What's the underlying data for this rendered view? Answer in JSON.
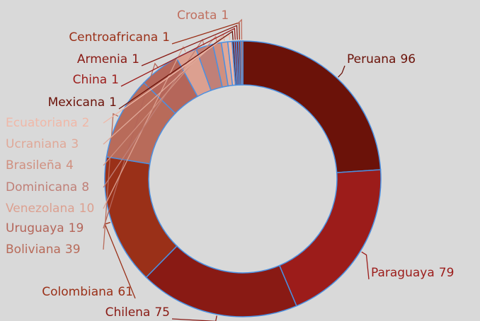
{
  "chart_data": {
    "type": "donut",
    "categories": [
      "Peruana",
      "Paraguaya",
      "Chilena",
      "Colombiana",
      "Boliviana",
      "Uruguaya",
      "Venezolana",
      "Dominicana",
      "Brasileña",
      "Ucraniana",
      "Ecuatoriana",
      "Mexicana",
      "China",
      "Armenia",
      "Centroafricana",
      "Croata"
    ],
    "values": [
      96,
      79,
      75,
      61,
      39,
      19,
      10,
      8,
      4,
      3,
      2,
      1,
      1,
      1,
      1,
      1
    ],
    "colors": [
      "#6b1209",
      "#9c1c1a",
      "#891a14",
      "#9a3018",
      "#b86b5a",
      "#b5665a",
      "#dca090",
      "#c08078",
      "#d09080",
      "#e0a898",
      "#f0b8a8",
      "#6b1209",
      "#9c1c1a",
      "#891a14",
      "#9a3018",
      "#c07060"
    ],
    "stroke": "#4a90e2"
  }
}
